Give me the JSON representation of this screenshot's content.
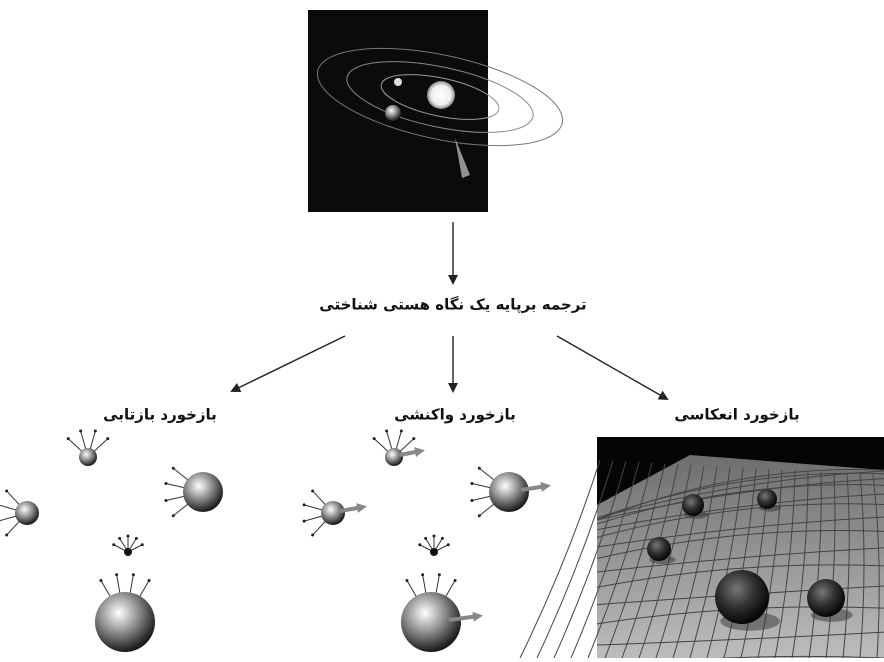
{
  "center": {
    "label": "ترجمه برپایه یک نگاه هستی شناختی"
  },
  "branches": [
    {
      "label": "بازخورد بازتابی"
    },
    {
      "label": "بازخورد واکنشی"
    },
    {
      "label": "بازخورد انعکاسی"
    }
  ]
}
